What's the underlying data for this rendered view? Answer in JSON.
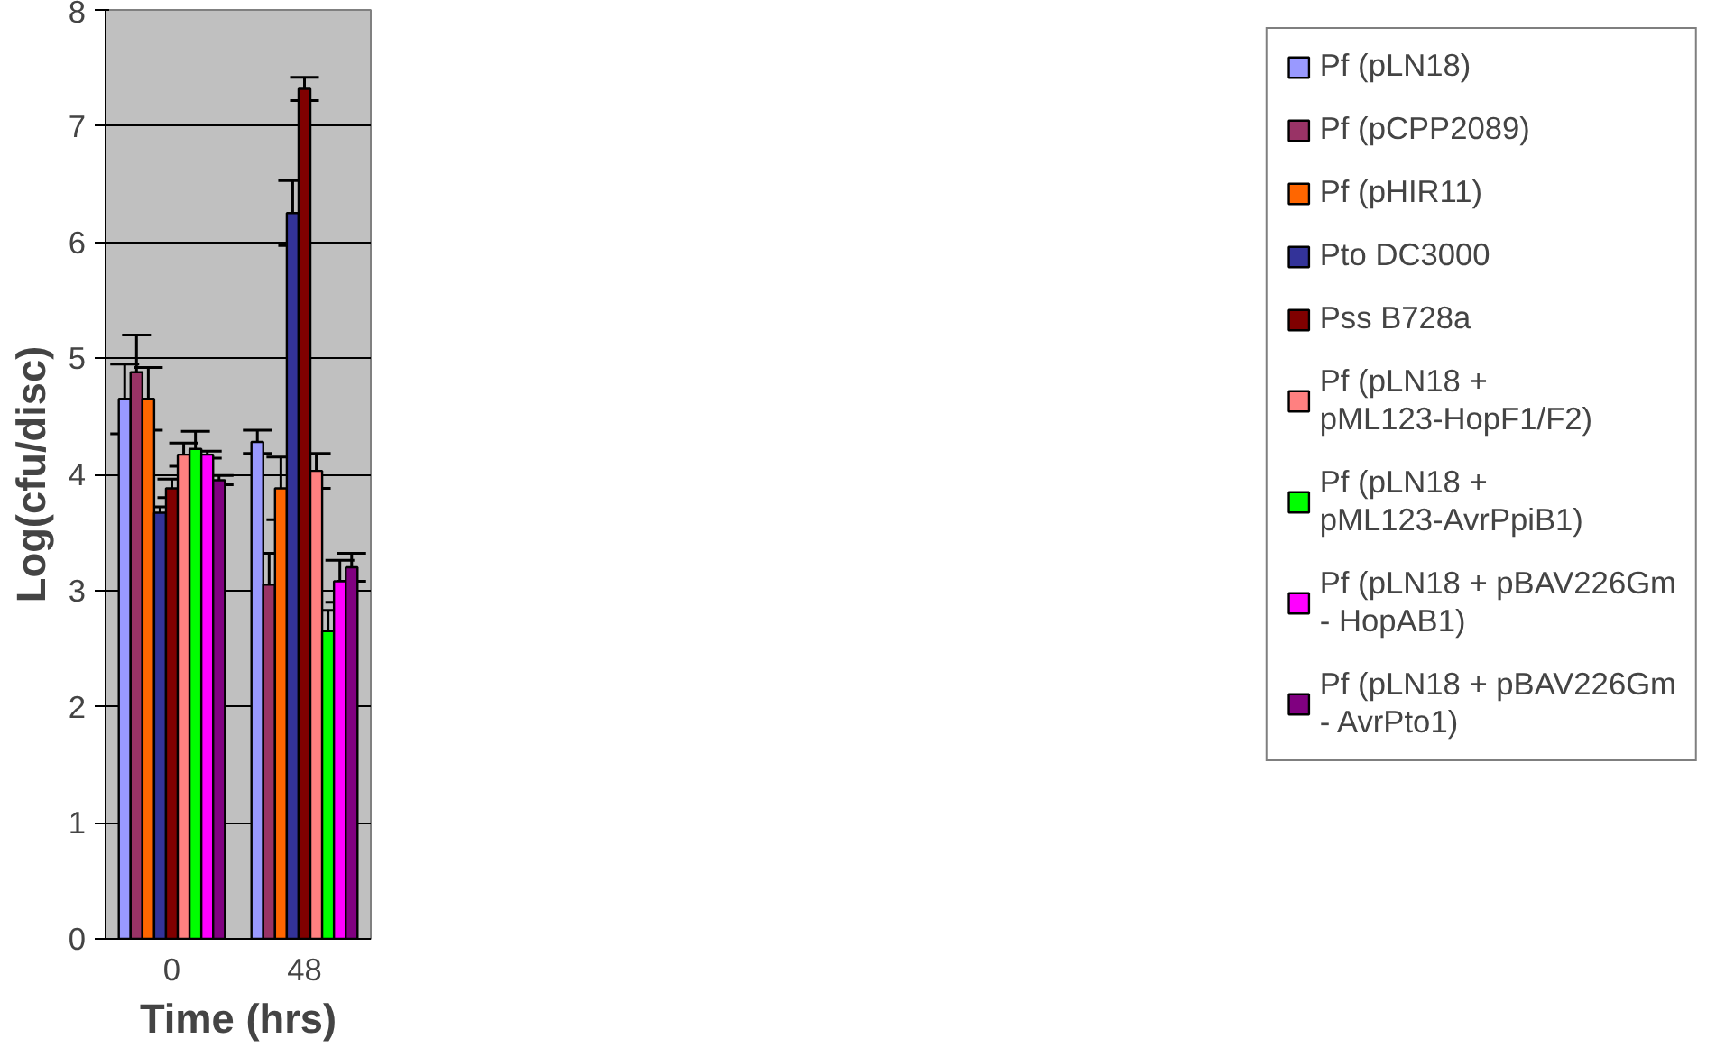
{
  "chart_data": {
    "type": "bar",
    "xlabel": "Time (hrs)",
    "ylabel": "Log(cfu/disc)",
    "categories": [
      "0",
      "48"
    ],
    "ylim": [
      0,
      8
    ],
    "yticks": [
      0,
      1,
      2,
      3,
      4,
      5,
      6,
      7,
      8
    ],
    "grid": "y",
    "legend": "right",
    "series": [
      {
        "name": "Pf (pLN18)",
        "color": "#9999ff",
        "values": [
          4.65,
          4.28
        ],
        "errors": [
          0.3,
          0.1
        ]
      },
      {
        "name": "Pf (pCPP2089)",
        "color": "#993366",
        "values": [
          4.88,
          3.05
        ],
        "errors": [
          0.32,
          0.27
        ]
      },
      {
        "name": "Pf (pHIR11)",
        "color": "#ff6600",
        "values": [
          4.65,
          3.88
        ],
        "errors": [
          0.27,
          0.27
        ]
      },
      {
        "name": "Pto DC3000",
        "color": "#333399",
        "values": [
          3.67,
          6.25
        ],
        "errors": [
          0.05,
          0.28
        ]
      },
      {
        "name": "Pss B728a",
        "color": "#800000",
        "values": [
          3.88,
          7.32
        ],
        "errors": [
          0.08,
          0.1
        ]
      },
      {
        "name": "Pf (pLN18 + pML123-HopF1/F2)",
        "color": "#ff8080",
        "values": [
          4.17,
          4.03
        ],
        "errors": [
          0.1,
          0.15
        ]
      },
      {
        "name": "Pf (pLN18 + pML123-AvrPpiB1)",
        "color": "#00ff00",
        "values": [
          4.22,
          2.65
        ],
        "errors": [
          0.15,
          0.18
        ]
      },
      {
        "name": "Pf (pLN18 + pBAV226Gm - HopAB1)",
        "color": "#ff00ff",
        "values": [
          4.17,
          3.08
        ],
        "errors": [
          0.03,
          0.18
        ]
      },
      {
        "name": "Pf (pLN18 + pBAV226Gm - AvrPto1)",
        "color": "#800080",
        "values": [
          3.95,
          3.2
        ],
        "errors": [
          0.04,
          0.12
        ]
      }
    ]
  }
}
